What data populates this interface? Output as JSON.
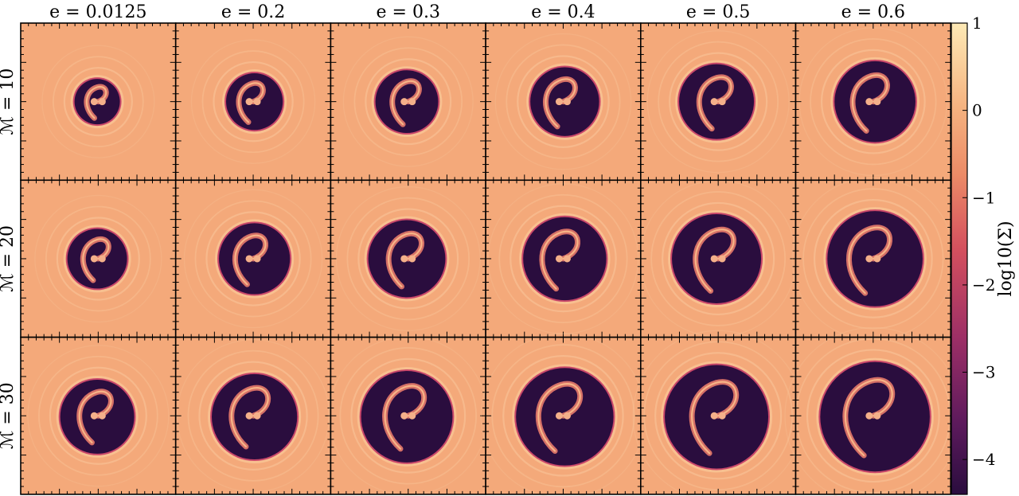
{
  "chart_data": {
    "type": "heatmap",
    "description_panels": "3x6 grid of surface-density maps of circumbinary discs",
    "column_titles": [
      "e = 0.0125",
      "e = 0.2",
      "e = 0.3",
      "e = 0.4",
      "e = 0.5",
      "e = 0.6"
    ],
    "row_labels": [
      "ℳ = 10",
      "ℳ = 20",
      "ℳ = 30"
    ],
    "eccentricity": [
      0.0125,
      0.2,
      0.3,
      0.4,
      0.5,
      0.6
    ],
    "mach": [
      10,
      20,
      30
    ],
    "colorbar": {
      "label": "log10(Σ)",
      "range": [
        -4.4,
        1.0
      ],
      "ticks": [
        1,
        0,
        -1,
        -2,
        -3,
        -4
      ],
      "tick_labels": [
        "1",
        "0",
        "−1",
        "−2",
        "−3",
        "−4"
      ],
      "colormap": "magma-like",
      "colors": [
        "#2a0d3e",
        "#5c1a5c",
        "#9c2f66",
        "#d4505e",
        "#ec8b67",
        "#f5b27f",
        "#fde9b5"
      ]
    },
    "background_color": "#f4a97a",
    "cavity_color": "#2a0d3e"
  }
}
